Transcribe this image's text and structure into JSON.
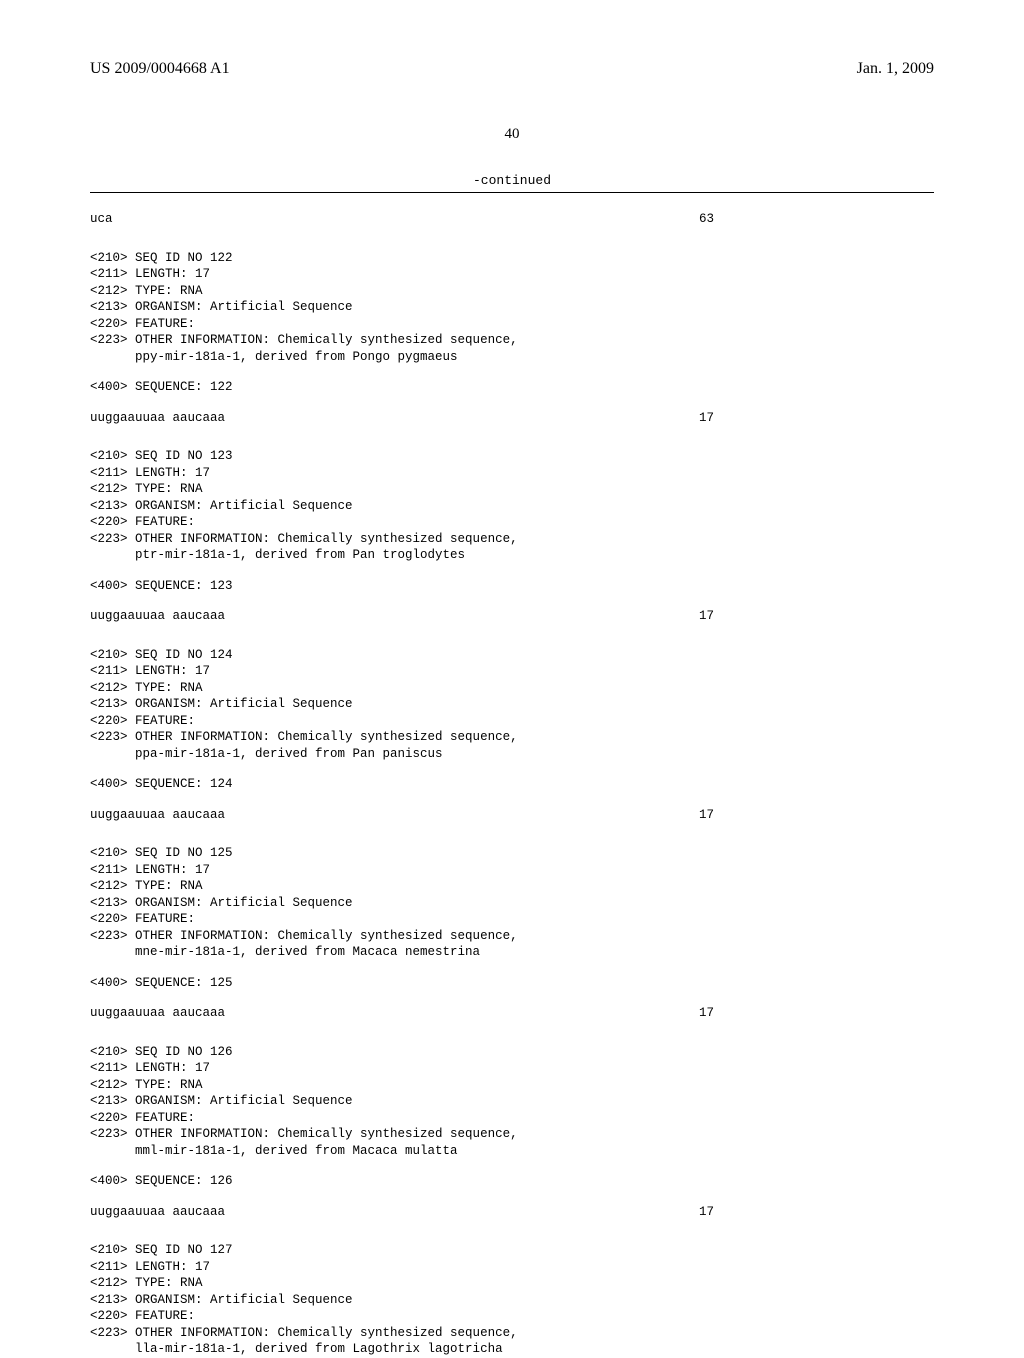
{
  "header": {
    "left": "US 2009/0004668 A1",
    "right": "Jan. 1, 2009"
  },
  "page_number": "40",
  "continued_label": "-continued",
  "first_seq": {
    "seq": "uca",
    "len": "63"
  },
  "entries": [
    {
      "id": "122",
      "length": "17",
      "type": "RNA",
      "organism": "Artificial Sequence",
      "other1": "Chemically synthesized sequence,",
      "other2": "ppy-mir-181a-1, derived from Pongo pygmaeus",
      "seq_label": "<400> SEQUENCE: 122",
      "seq": "uuggaauuaa aaucaaa",
      "seqlen": "17"
    },
    {
      "id": "123",
      "length": "17",
      "type": "RNA",
      "organism": "Artificial Sequence",
      "other1": "Chemically synthesized sequence,",
      "other2": "ptr-mir-181a-1, derived from Pan troglodytes",
      "seq_label": "<400> SEQUENCE: 123",
      "seq": "uuggaauuaa aaucaaa",
      "seqlen": "17"
    },
    {
      "id": "124",
      "length": "17",
      "type": "RNA",
      "organism": "Artificial Sequence",
      "other1": "Chemically synthesized sequence,",
      "other2": "ppa-mir-181a-1, derived from Pan paniscus",
      "seq_label": "<400> SEQUENCE: 124",
      "seq": "uuggaauuaa aaucaaa",
      "seqlen": "17"
    },
    {
      "id": "125",
      "length": "17",
      "type": "RNA",
      "organism": "Artificial Sequence",
      "other1": "Chemically synthesized sequence,",
      "other2": "mne-mir-181a-1, derived from Macaca nemestrina",
      "seq_label": "<400> SEQUENCE: 125",
      "seq": "uuggaauuaa aaucaaa",
      "seqlen": "17"
    },
    {
      "id": "126",
      "length": "17",
      "type": "RNA",
      "organism": "Artificial Sequence",
      "other1": "Chemically synthesized sequence,",
      "other2": "mml-mir-181a-1, derived from Macaca mulatta",
      "seq_label": "<400> SEQUENCE: 126",
      "seq": "uuggaauuaa aaucaaa",
      "seqlen": "17"
    },
    {
      "id": "127",
      "length": "17",
      "type": "RNA",
      "organism": "Artificial Sequence",
      "other1": "Chemically synthesized sequence,",
      "other2": "lla-mir-181a-1, derived from Lagothrix lagotricha",
      "seq_label": "",
      "seq": "",
      "seqlen": ""
    }
  ],
  "labels": {
    "seq_id": "<210> SEQ ID NO ",
    "length": "<211> LENGTH: ",
    "type": "<212> TYPE: ",
    "organism": "<213> ORGANISM: ",
    "feature": "<220> FEATURE:",
    "other": "<223> OTHER INFORMATION: ",
    "indent": "      "
  }
}
